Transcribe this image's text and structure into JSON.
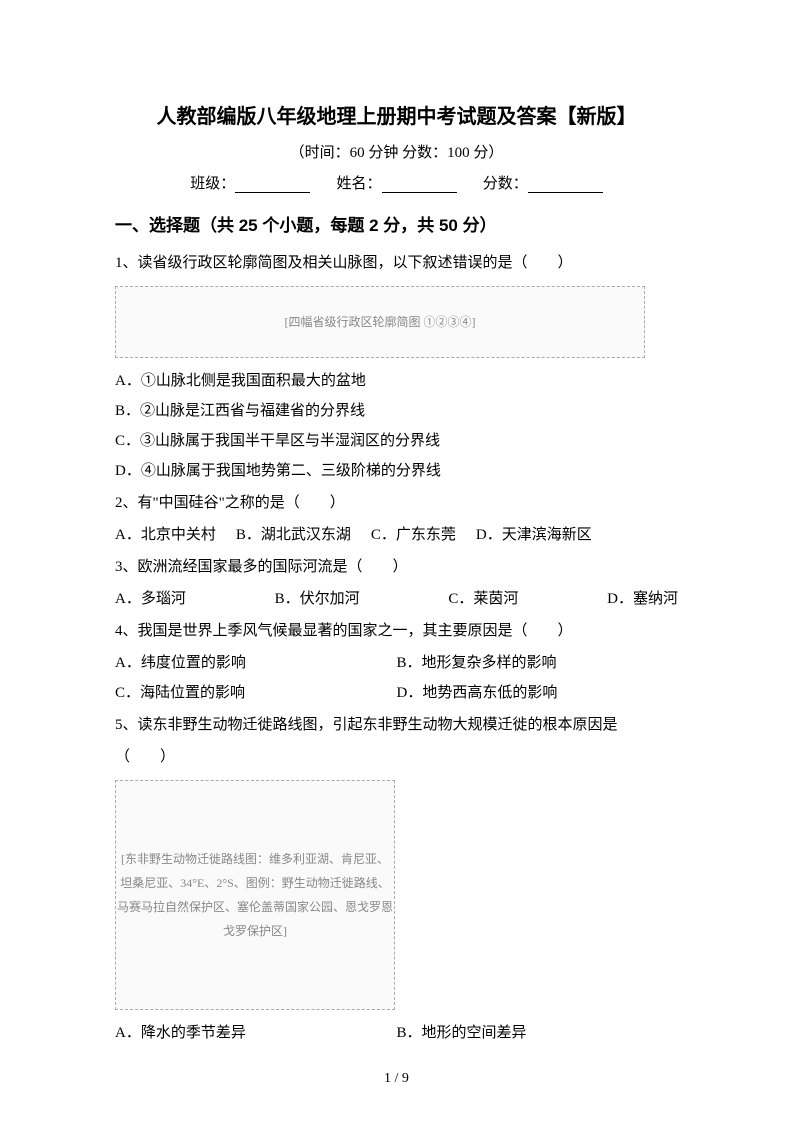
{
  "title": "人教部编版八年级地理上册期中考试题及答案【新版】",
  "subtitle": "（时间：60 分钟    分数：100 分）",
  "info": {
    "class_label": "班级：",
    "name_label": "姓名：",
    "score_label": "分数："
  },
  "section1": {
    "header": "一、选择题（共 25 个小题，每题 2 分，共 50 分）"
  },
  "q1": {
    "text": "1、读省级行政区轮廓简图及相关山脉图，以下叙述错误的是（　　）",
    "figure_alt": "[四幅省级行政区轮廓简图 ①②③④]",
    "optA": "A．①山脉北侧是我国面积最大的盆地",
    "optB": "B．②山脉是江西省与福建省的分界线",
    "optC": "C．③山脉属于我国半干旱区与半湿润区的分界线",
    "optD": "D．④山脉属于我国地势第二、三级阶梯的分界线"
  },
  "q2": {
    "text": "2、有\"中国硅谷\"之称的是（　　）",
    "optA": "A．北京中关村",
    "optB": "B．湖北武汉东湖",
    "optC": "C．广东东莞",
    "optD": "D．天津滨海新区"
  },
  "q3": {
    "text": "3、欧洲流经国家最多的国际河流是（　　）",
    "optA": "A．多瑙河",
    "optB": "B．伏尔加河",
    "optC": "C．莱茵河",
    "optD": "D．塞纳河"
  },
  "q4": {
    "text": "4、我国是世界上季风气候最显著的国家之一，其主要原因是（　　）",
    "optA": "A．纬度位置的影响",
    "optB": "B．地形复杂多样的影响",
    "optC": "C．海陆位置的影响",
    "optD": "D．地势西高东低的影响"
  },
  "q5": {
    "text1": "5、读东非野生动物迁徙路线图，引起东非野生动物大规模迁徙的根本原因是",
    "text2": "（　　）",
    "figure_alt": "[东非野生动物迁徙路线图：维多利亚湖、肯尼亚、坦桑尼亚、34°E、2°S、图例：野生动物迁徙路线、马赛马拉自然保护区、塞伦盖蒂国家公园、恩戈罗恩戈罗保护区]",
    "optA": "A．降水的季节差异",
    "optB": "B．地形的空间差异"
  },
  "page_number": "1 / 9",
  "colors": {
    "background": "#ffffff",
    "text": "#000000",
    "placeholder_border": "#aaaaaa",
    "placeholder_bg": "#fafafa",
    "placeholder_text": "#888888"
  },
  "fonts": {
    "body_family": "SimSun",
    "heading_family": "SimHei",
    "title_size": 20,
    "body_size": 15,
    "section_size": 17
  }
}
